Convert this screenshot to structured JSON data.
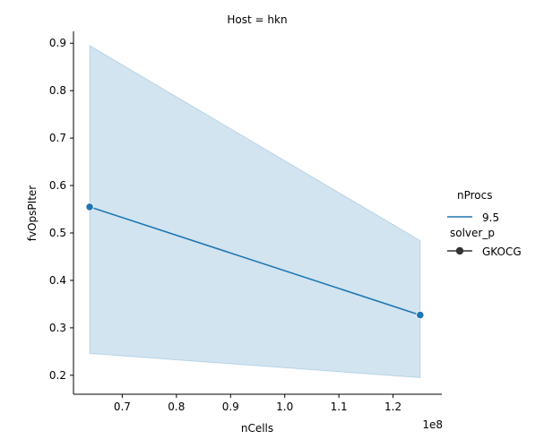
{
  "chart_data": {
    "type": "line",
    "title": "Host = hkn",
    "xlabel": "nCells",
    "ylabel": "fvOpsPIter",
    "x_offset_label": "1e8",
    "xlim": [
      61000000,
      129000000
    ],
    "ylim": [
      0.16,
      0.925
    ],
    "x_ticks": [
      70000000,
      80000000,
      90000000,
      100000000,
      110000000,
      120000000
    ],
    "x_tick_labels": [
      "0.7",
      "0.8",
      "0.9",
      "1.0",
      "1.1",
      "1.2"
    ],
    "y_ticks": [
      0.2,
      0.3,
      0.4,
      0.5,
      0.6,
      0.7,
      0.8,
      0.9
    ],
    "y_tick_labels": [
      "0.2",
      "0.3",
      "0.4",
      "0.5",
      "0.6",
      "0.7",
      "0.8",
      "0.9"
    ],
    "series": [
      {
        "name": "9.5",
        "color": "#1f77b4",
        "x": [
          64000000,
          125000000
        ],
        "y": [
          0.555,
          0.327
        ],
        "ci_lower": [
          0.246,
          0.195
        ],
        "ci_upper": [
          0.895,
          0.484
        ],
        "marker": "circle"
      }
    ],
    "legend": {
      "placement": "right",
      "groups": [
        {
          "title": "nProcs",
          "entries": [
            {
              "label": "9.5",
              "kind": "line"
            }
          ]
        },
        {
          "title": "solver_p",
          "entries": [
            {
              "label": "GKOCG",
              "kind": "marker"
            }
          ]
        }
      ]
    },
    "grid": false
  }
}
